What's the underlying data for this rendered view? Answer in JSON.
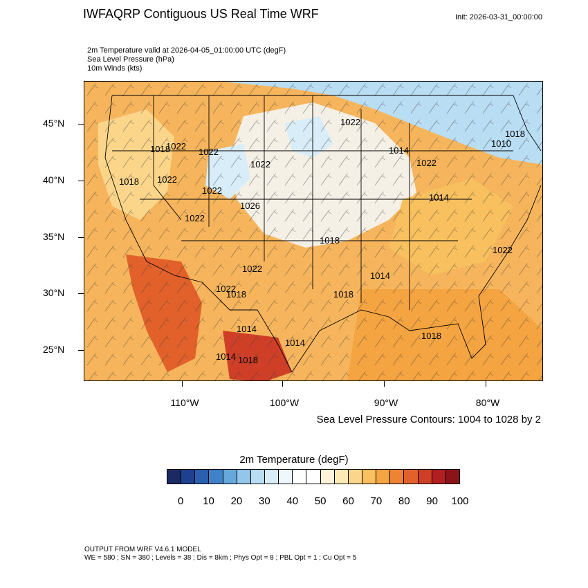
{
  "header": {
    "title": "IWFAQRP Contiguous US Real Time WRF",
    "init": "Init: 2026-03-31_00:00:00"
  },
  "fields": [
    "2m Temperature valid at 2026-04-05_01:00:00 UTC   (degF)",
    "Sea Level Pressure   (hPa)",
    "10m Winds   (kts)"
  ],
  "axes": {
    "lat_labels": [
      "45°N",
      "40°N",
      "35°N",
      "30°N",
      "25°N"
    ],
    "lon_labels": [
      "110°W",
      "100°W",
      "90°W",
      "80°W"
    ]
  },
  "pressure_labels": [
    "1022",
    "1010",
    "1018",
    "1014",
    "1022",
    "1018",
    "1022",
    "1022",
    "1018",
    "1022",
    "1022",
    "1026",
    "1022",
    "1018",
    "1022",
    "1022",
    "1018",
    "1018",
    "1014",
    "1014",
    "1018",
    "1014",
    "1018",
    "1014",
    "1022",
    "1014",
    "1022"
  ],
  "contours_note": "Sea Level Pressure Contours: 1004 to 1028 by 2",
  "colorbar": {
    "title": "2m Temperature  (degF)",
    "colors": [
      "#1b2a63",
      "#1f3f8f",
      "#2a5fb0",
      "#3f82c9",
      "#67a8dc",
      "#93c6ea",
      "#b9ddf3",
      "#d8edf8",
      "#eef7fb",
      "#ffffff",
      "#ffffff",
      "#fff4d8",
      "#fde9b4",
      "#fbd68a",
      "#f8c05e",
      "#f4a440",
      "#ee8432",
      "#e2612a",
      "#cf3f27",
      "#b21f22",
      "#8b1419"
    ],
    "labels": [
      "0",
      "10",
      "20",
      "30",
      "40",
      "50",
      "60",
      "70",
      "80",
      "90",
      "100"
    ]
  },
  "footer": {
    "line1": "OUTPUT FROM WRF V4.6.1 MODEL",
    "line2": "WE = 580 ; SN = 380 ; Levels = 38 ; Dis = 8km ; Phys Opt = 8 ; PBL Opt = 1 ; Cu Opt = 5"
  }
}
